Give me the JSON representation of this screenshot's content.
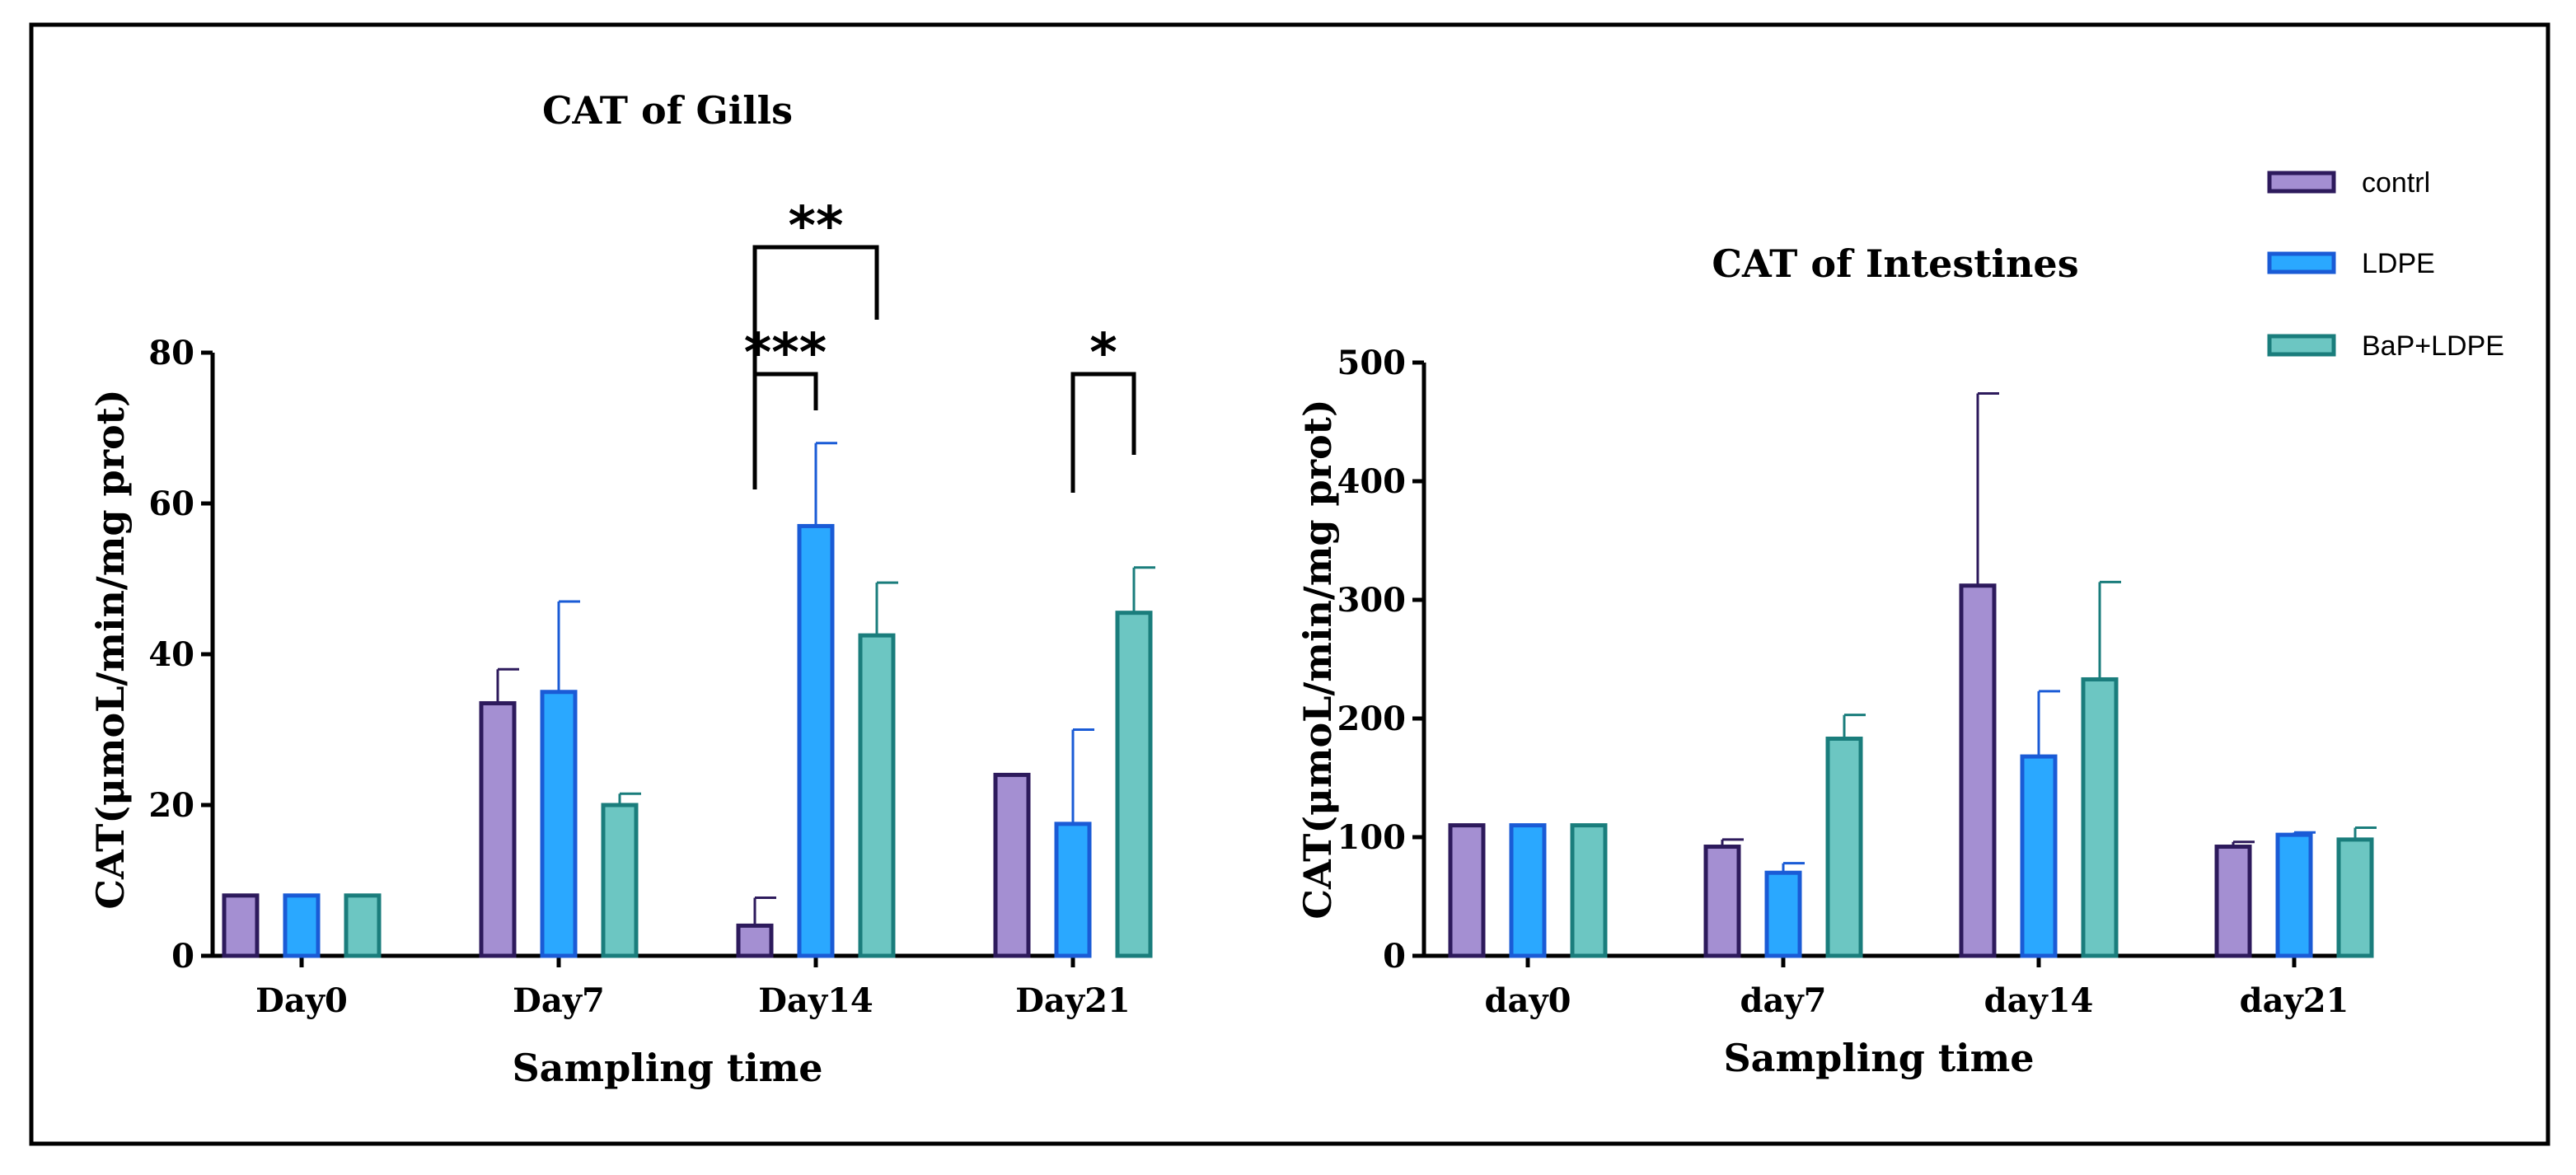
{
  "colors": {
    "contrl": {
      "fill": "#a48fd2",
      "stroke": "#2d1a5c"
    },
    "LDPE": {
      "fill": "#2aa8ff",
      "stroke": "#1a5bd6"
    },
    "BaP+LDPE": {
      "fill": "#6cc6c2",
      "stroke": "#1a7d7c"
    }
  },
  "legend": [
    "contrl",
    "LDPE",
    "BaP+LDPE"
  ],
  "chart_data": [
    {
      "type": "bar",
      "title": "CAT of Gills",
      "xlabel": "Sampling time",
      "ylabel": "CAT(μmoL/min/mg prot)",
      "ylim": [
        0,
        80
      ],
      "yticks": [
        0,
        20,
        40,
        60,
        80
      ],
      "categories": [
        "Day0",
        "Day7",
        "Day14",
        "Day21"
      ],
      "series": [
        {
          "name": "contrl",
          "values": [
            8,
            33.5,
            4,
            24
          ],
          "errors": [
            0,
            4.5,
            3.7,
            0
          ]
        },
        {
          "name": "LDPE",
          "values": [
            8,
            35,
            57,
            17.5
          ],
          "errors": [
            0,
            12,
            11,
            12.5
          ]
        },
        {
          "name": "BaP+LDPE",
          "values": [
            8,
            20,
            42.5,
            45.5
          ],
          "errors": [
            0,
            1.5,
            7,
            6
          ]
        }
      ],
      "annotations": [
        {
          "label": "**",
          "category": "Day14",
          "from": "contrl",
          "to": "BaP+LDPE"
        },
        {
          "label": "***",
          "category": "Day14",
          "from": "contrl",
          "to": "LDPE"
        },
        {
          "label": "*",
          "category": "Day21",
          "from": "LDPE",
          "to": "BaP+LDPE"
        }
      ]
    },
    {
      "type": "bar",
      "title": "CAT of Intestines",
      "xlabel": "Sampling time",
      "ylabel": "CAT(μmoL/min/mg prot)",
      "ylim": [
        0,
        500
      ],
      "yticks": [
        0,
        100,
        200,
        300,
        400,
        500
      ],
      "categories": [
        "day0",
        "day7",
        "day14",
        "day21"
      ],
      "series": [
        {
          "name": "contrl",
          "values": [
            110,
            92,
            312,
            92
          ],
          "errors": [
            0,
            6,
            162,
            4
          ]
        },
        {
          "name": "LDPE",
          "values": [
            110,
            70,
            168,
            102
          ],
          "errors": [
            0,
            8,
            55,
            2
          ]
        },
        {
          "name": "BaP+LDPE",
          "values": [
            110,
            183,
            233,
            98
          ],
          "errors": [
            0,
            20,
            82,
            10
          ]
        }
      ],
      "annotations": []
    }
  ]
}
